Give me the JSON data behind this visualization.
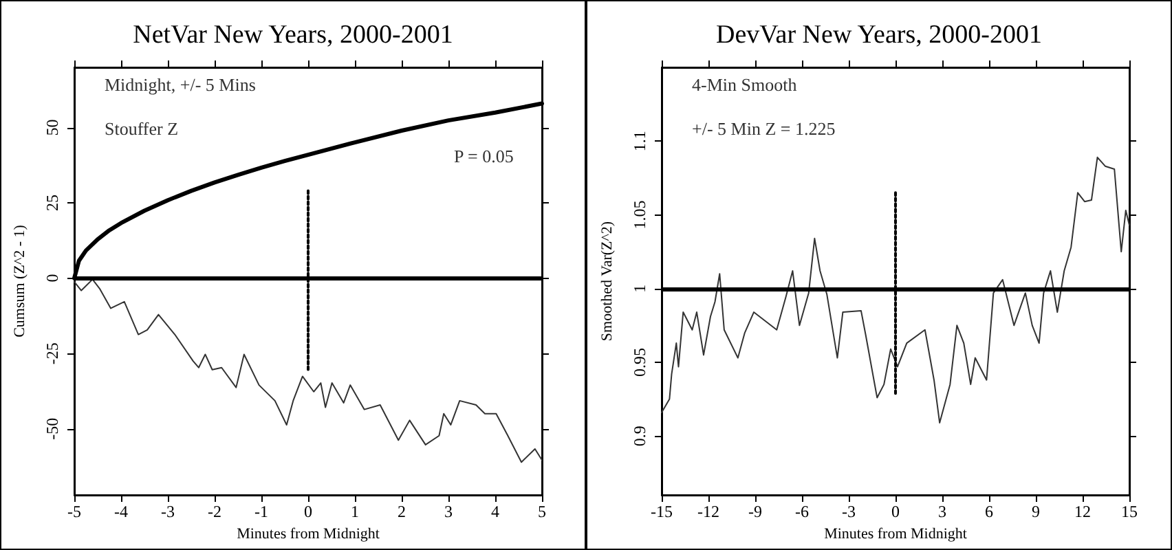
{
  "chart_data": [
    {
      "type": "line",
      "title": "NetVar New Years, 2000-2001",
      "xlabel": "Minutes from Midnight",
      "ylabel": "Cumsum (Z^2 - 1)",
      "annotations": [
        "Midnight, +/- 5 Mins",
        "Stouffer Z",
        "P = 0.05"
      ],
      "xlim": [
        -5,
        5
      ],
      "xticks": [
        -5,
        -4,
        -3,
        -2,
        -1,
        0,
        1,
        2,
        3,
        4,
        5
      ],
      "ylim": [
        -72,
        70
      ],
      "yticks": [
        -50,
        -25,
        0,
        25,
        50
      ],
      "grid": false,
      "marker": "none",
      "ref_lines": [
        {
          "axis": "y",
          "value": 0,
          "color": "#000000"
        }
      ],
      "series": [
        {
          "color": "#000000",
          "x": [
            -5,
            -4.9,
            -4.75,
            -4.5,
            -4.25,
            -4,
            -3.5,
            -3,
            -2.5,
            -2,
            -1.5,
            -1,
            -0.5,
            0,
            1,
            2,
            3,
            4,
            5
          ],
          "values": [
            0,
            5.8,
            9.2,
            12.9,
            15.9,
            18.3,
            22.4,
            25.9,
            29.0,
            31.8,
            34.3,
            36.7,
            38.9,
            41,
            45.1,
            49.0,
            52.4,
            55.0,
            58
          ]
        },
        {
          "color": "#333333",
          "x": [
            -5,
            -4.85,
            -4.61,
            -4.46,
            -4.22,
            -3.93,
            -3.63,
            -3.44,
            -3.2,
            -2.85,
            -2.46,
            -2.34,
            -2.2,
            -2.05,
            -1.85,
            -1.54,
            -1.37,
            -1.05,
            -0.71,
            -0.46,
            -0.32,
            -0.12,
            0.12,
            0.27,
            0.37,
            0.51,
            0.76,
            0.9,
            1.2,
            1.54,
            1.93,
            2.17,
            2.51,
            2.8,
            2.9,
            3.05,
            3.24,
            3.59,
            3.78,
            4.02,
            4.27,
            4.56,
            4.85,
            5
          ],
          "values": [
            -1.2,
            -4.1,
            -0.4,
            -3.4,
            -10,
            -7.8,
            -18.7,
            -17.2,
            -12.1,
            -18.7,
            -27.5,
            -29.7,
            -25.3,
            -30.4,
            -29.7,
            -36.3,
            -25.3,
            -35.5,
            -40.7,
            -48.7,
            -40.7,
            -32.6,
            -37.7,
            -34.8,
            -42.9,
            -34.8,
            -41.4,
            -35.5,
            -43.6,
            -42.1,
            -53.8,
            -47.2,
            -55.3,
            -52.3,
            -45,
            -48.7,
            -40.7,
            -42.1,
            -45,
            -45,
            -52.3,
            -61.1,
            -56.7,
            -60.4
          ]
        },
        {
          "color": "#000000",
          "line_style": "dotted",
          "x": [
            0,
            0
          ],
          "values": [
            29,
            -31
          ]
        }
      ]
    },
    {
      "type": "line",
      "title": "DevVar New Years, 2000-2001",
      "xlabel": "Minutes from Midnight",
      "ylabel": "Smoothed Var(Z^2)",
      "annotations": [
        "4-Min Smooth",
        "+/- 5 Min Z = 1.225"
      ],
      "xlim": [
        -15,
        15
      ],
      "xticks": [
        -15,
        -12,
        -9,
        -6,
        -3,
        0,
        3,
        6,
        9,
        12,
        15
      ],
      "ylim": [
        0.86,
        1.15
      ],
      "yticks": [
        0.9,
        0.95,
        {
          "value": 1,
          "label": "1"
        },
        1.05,
        1.1
      ],
      "grid": false,
      "marker": "none",
      "ref_lines": [
        {
          "axis": "y",
          "value": 1,
          "color": "#000000"
        }
      ],
      "series": [
        {
          "color": "#333333",
          "x": [
            -15,
            -14.5,
            -14.36,
            -14.06,
            -13.92,
            -13.62,
            -13.04,
            -12.75,
            -12.31,
            -11.87,
            -11.58,
            -11.28,
            -10.99,
            -10.11,
            -9.67,
            -9.09,
            -7.62,
            -7.04,
            -6.6,
            -6.16,
            -5.57,
            -5.19,
            -4.84,
            -4.4,
            -3.73,
            -3.38,
            -2.21,
            -1.92,
            -1.18,
            -0.74,
            -0.31,
            0.13,
            0.72,
            1.89,
            2.47,
            2.83,
            3.5,
            3.94,
            4.38,
            4.82,
            5.11,
            5.84,
            6.28,
            6.87,
            7.6,
            8.33,
            8.77,
            9.21,
            9.5,
            9.94,
            10.38,
            10.82,
            11.26,
            11.69,
            12.13,
            12.57,
            12.95,
            13.45,
            14.04,
            14.33,
            14.48,
            14.77,
            15
          ],
          "values": [
            0.916,
            0.925,
            0.942,
            0.963,
            0.947,
            0.984,
            0.972,
            0.984,
            0.955,
            0.981,
            0.991,
            1.01,
            0.972,
            0.953,
            0.97,
            0.984,
            0.972,
            0.994,
            1.012,
            0.975,
            0.997,
            1.034,
            1.012,
            0.996,
            0.953,
            0.984,
            0.985,
            0.969,
            0.926,
            0.935,
            0.959,
            0.947,
            0.963,
            0.972,
            0.938,
            0.909,
            0.935,
            0.975,
            0.963,
            0.935,
            0.953,
            0.938,
            0.997,
            1.006,
            0.975,
            0.997,
            0.975,
            0.963,
            0.997,
            1.012,
            0.984,
            1.012,
            1.028,
            1.065,
            1.059,
            1.06,
            1.089,
            1.083,
            1.081,
            1.044,
            1.025,
            1.053,
            1.043
          ]
        },
        {
          "color": "#000000",
          "line_style": "dotted",
          "x": [
            0,
            0
          ],
          "values": [
            1.065,
            0.928
          ]
        }
      ]
    }
  ]
}
